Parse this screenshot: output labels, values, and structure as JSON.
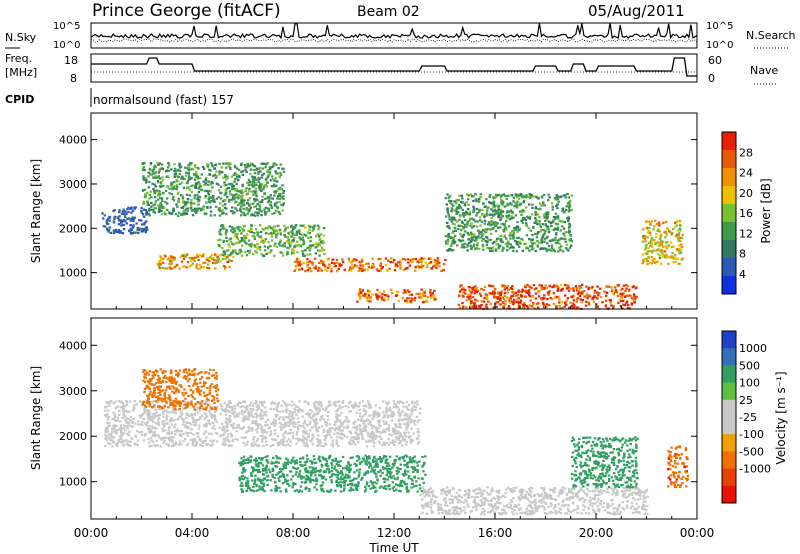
{
  "header": {
    "station": "Prince George (fitACF)",
    "beam": "Beam 02",
    "date": "05/Aug/2011"
  },
  "noise_panel": {
    "left_label": "N.Sky",
    "left_ticks": [
      "10^5",
      "10^0"
    ],
    "right_label": "N.Search",
    "right_ticks": [
      "10^5",
      "10^0"
    ]
  },
  "freq_panel": {
    "left_label_line1": "Freq.",
    "left_label_line2": "[MHz]",
    "left_ticks": [
      "18",
      "8"
    ],
    "right_label": "Nave",
    "right_ticks": [
      "60",
      "0"
    ]
  },
  "cpid": {
    "label": "CPID",
    "value": "normalsound (fast) 157"
  },
  "chart_data": [
    {
      "type": "heatmap",
      "panel": "power",
      "ylabel": "Slant Range [km]",
      "xlabel": "",
      "xlim": [
        "00:00",
        "24:00"
      ],
      "ylim": [
        180,
        4600
      ],
      "y_ticks": [
        1000,
        2000,
        3000,
        4000
      ],
      "colorbar": {
        "label": "Power [dB]",
        "ticks": [
          4,
          8,
          12,
          16,
          20,
          24,
          28
        ],
        "range": [
          0,
          32
        ],
        "colors": [
          "#1030e0",
          "#2e58b8",
          "#2f7a60",
          "#3c9a4c",
          "#78c030",
          "#f0c000",
          "#f09000",
          "#e85a00",
          "#e82000"
        ]
      },
      "features": [
        {
          "t_start": 2.0,
          "t_end": 7.6,
          "r_start": 2300,
          "r_end": 3500,
          "value": 12
        },
        {
          "t_start": 0.4,
          "t_end": 2.2,
          "r_start": 1900,
          "r_end": 2500,
          "value": 6
        },
        {
          "t_start": 2.6,
          "t_end": 5.6,
          "r_start": 1100,
          "r_end": 1450,
          "value": 22
        },
        {
          "t_start": 5.0,
          "t_end": 9.2,
          "r_start": 1400,
          "r_end": 2100,
          "value": 14
        },
        {
          "t_start": 8.0,
          "t_end": 14.0,
          "r_start": 1050,
          "r_end": 1350,
          "value": 25
        },
        {
          "t_start": 10.5,
          "t_end": 13.6,
          "r_start": 350,
          "r_end": 650,
          "value": 26
        },
        {
          "t_start": 14.5,
          "t_end": 21.6,
          "r_start": 200,
          "r_end": 750,
          "value": 30
        },
        {
          "t_start": 14.0,
          "t_end": 19.0,
          "r_start": 1500,
          "r_end": 2800,
          "value": 12
        },
        {
          "t_start": 21.8,
          "t_end": 23.4,
          "r_start": 1200,
          "r_end": 2200,
          "value": 20
        }
      ]
    },
    {
      "type": "heatmap",
      "panel": "velocity",
      "ylabel": "Slant Range [km]",
      "xlabel": "Time UT",
      "x_ticks": [
        "00:00",
        "04:00",
        "08:00",
        "12:00",
        "16:00",
        "20:00",
        "00:00"
      ],
      "xlim": [
        "00:00",
        "24:00"
      ],
      "ylim": [
        180,
        4600
      ],
      "y_ticks": [
        1000,
        2000,
        3000,
        4000
      ],
      "colorbar": {
        "label": "Velocity [m s⁻¹]",
        "ticks": [
          "1000",
          "500",
          "100",
          "25",
          "-25",
          "-100",
          "-500",
          "-1000"
        ],
        "colors": [
          "#2040c8",
          "#3070b8",
          "#30a060",
          "#60c040",
          "#c8c8c8",
          "#c8c8c8",
          "#f0a000",
          "#f07000",
          "#e84000",
          "#e81000"
        ]
      },
      "features": [
        {
          "t_start": 0.5,
          "t_end": 13.0,
          "r_start": 1800,
          "r_end": 2800,
          "value": "ground scatter"
        },
        {
          "t_start": 5.8,
          "t_end": 13.2,
          "r_start": 800,
          "r_end": 1600,
          "value": 150
        },
        {
          "t_start": 13.0,
          "t_end": 22.0,
          "r_start": 300,
          "r_end": 900,
          "value": "ground scatter"
        },
        {
          "t_start": 2.0,
          "t_end": 5.0,
          "r_start": 2600,
          "r_end": 3500,
          "value": -300
        },
        {
          "t_start": 19.0,
          "t_end": 21.6,
          "r_start": 900,
          "r_end": 2000,
          "value": 200
        },
        {
          "t_start": 22.8,
          "t_end": 23.6,
          "r_start": 900,
          "r_end": 1800,
          "value": -400
        }
      ]
    }
  ]
}
